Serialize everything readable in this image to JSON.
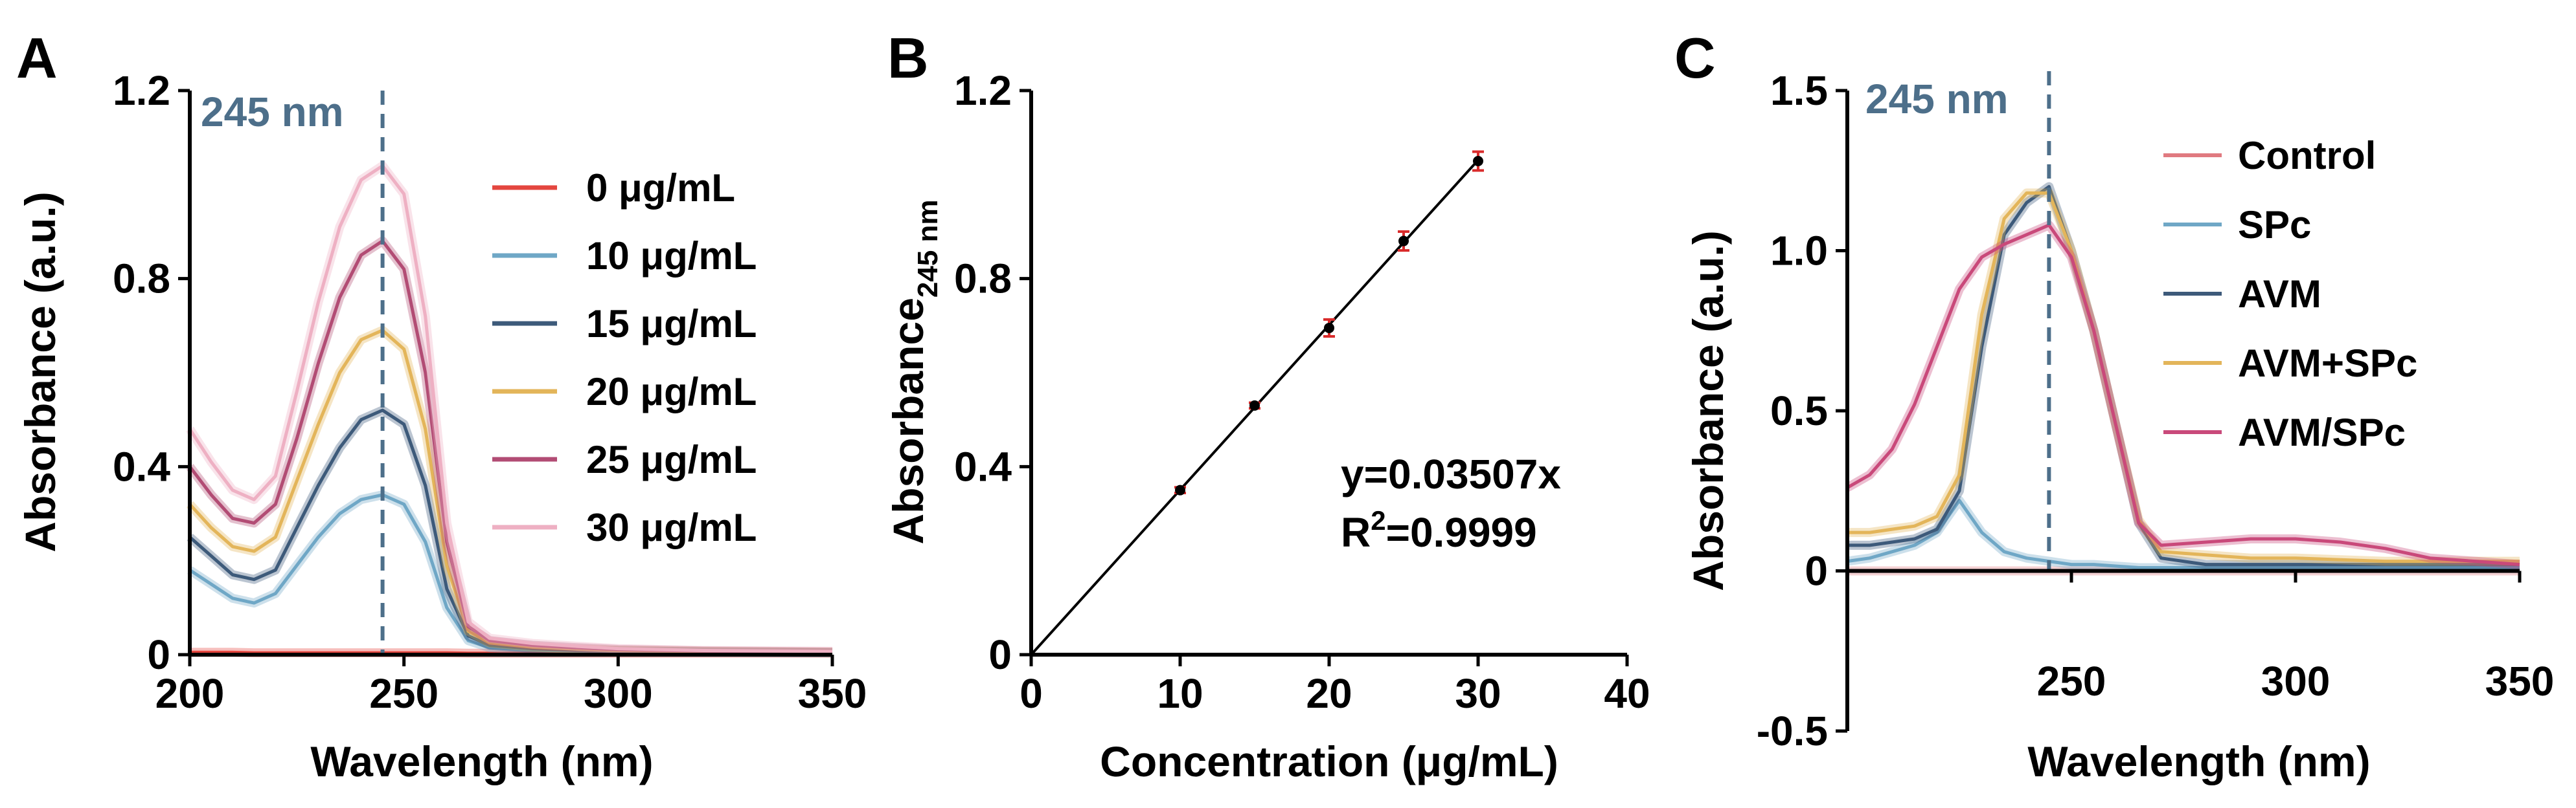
{
  "chart_data": [
    {
      "panel": "A",
      "type": "line",
      "xlabel": "Wavelength (nm)",
      "ylabel": "Absorbance (a.u.)",
      "xlim": [
        200,
        350
      ],
      "ylim": [
        0,
        1.2
      ],
      "xticks": [
        "200",
        "250",
        "300",
        "350"
      ],
      "yticks": [
        "0",
        "0.4",
        "0.8",
        "1.2"
      ],
      "annotation": "245 nm",
      "annotation_x": 245,
      "legend_position": "right",
      "x": [
        200,
        205,
        210,
        215,
        220,
        225,
        230,
        235,
        240,
        245,
        250,
        255,
        260,
        265,
        270,
        280,
        290,
        300,
        320,
        350
      ],
      "series": [
        {
          "name": "0 μg/mL",
          "color": "#e4463f",
          "values": [
            0.005,
            0.005,
            0.005,
            0.004,
            0.004,
            0.004,
            0.004,
            0.004,
            0.004,
            0.004,
            0.004,
            0.004,
            0.004,
            0.003,
            0.003,
            0.003,
            0.003,
            0.003,
            0.003,
            0.003
          ]
        },
        {
          "name": "10 μg/mL",
          "color": "#6fa7c6",
          "values": [
            0.18,
            0.15,
            0.12,
            0.11,
            0.13,
            0.19,
            0.25,
            0.3,
            0.33,
            0.34,
            0.32,
            0.24,
            0.1,
            0.03,
            0.015,
            0.01,
            0.008,
            0.006,
            0.005,
            0.004
          ]
        },
        {
          "name": "15 μg/mL",
          "color": "#3d5a7a",
          "values": [
            0.25,
            0.21,
            0.17,
            0.16,
            0.18,
            0.27,
            0.36,
            0.44,
            0.5,
            0.52,
            0.49,
            0.36,
            0.14,
            0.04,
            0.02,
            0.013,
            0.01,
            0.008,
            0.006,
            0.004
          ]
        },
        {
          "name": "20 μg/mL",
          "color": "#e3b55a",
          "values": [
            0.32,
            0.27,
            0.23,
            0.22,
            0.25,
            0.37,
            0.49,
            0.6,
            0.67,
            0.69,
            0.65,
            0.48,
            0.19,
            0.05,
            0.025,
            0.016,
            0.012,
            0.009,
            0.007,
            0.005
          ]
        },
        {
          "name": "25 μg/mL",
          "color": "#b24c74",
          "values": [
            0.4,
            0.34,
            0.29,
            0.28,
            0.32,
            0.46,
            0.62,
            0.76,
            0.85,
            0.88,
            0.82,
            0.6,
            0.24,
            0.06,
            0.03,
            0.02,
            0.015,
            0.011,
            0.008,
            0.006
          ]
        },
        {
          "name": "30 μg/mL",
          "color": "#eeb0c3",
          "values": [
            0.48,
            0.41,
            0.35,
            0.33,
            0.38,
            0.56,
            0.75,
            0.91,
            1.01,
            1.04,
            0.98,
            0.72,
            0.28,
            0.07,
            0.035,
            0.024,
            0.018,
            0.013,
            0.009,
            0.007
          ]
        }
      ]
    },
    {
      "panel": "B",
      "type": "scatter",
      "xlabel": "Concentration (μg/mL)",
      "ylabel_main": "Absorbance",
      "ylabel_sub": "245 nm",
      "xlim": [
        0,
        40
      ],
      "ylim": [
        0,
        1.2
      ],
      "xticks": [
        "0",
        "10",
        "20",
        "30",
        "40"
      ],
      "yticks": [
        "0",
        "0.4",
        "0.8",
        "1.2"
      ],
      "x": [
        10,
        15,
        20,
        25,
        30
      ],
      "y": [
        0.35,
        0.53,
        0.695,
        0.88,
        1.05
      ],
      "errors": [
        0.006,
        0.006,
        0.018,
        0.02,
        0.02
      ],
      "fit": {
        "slope": 0.03507,
        "x_range": [
          0,
          30.1
        ]
      },
      "equation": "y=0.03507x",
      "r2_prefix": "R",
      "r2_sup": "2",
      "r2_value": "=0.9999"
    },
    {
      "panel": "C",
      "type": "line",
      "xlabel": "Wavelength (nm)",
      "ylabel": "Absorbance (a.u.)",
      "xlim": [
        200,
        350
      ],
      "ylim": [
        -0.5,
        1.5
      ],
      "xticks": [
        "250",
        "300",
        "350"
      ],
      "yticks": [
        "-0.5",
        "0",
        "0.5",
        "1.0",
        "1.5"
      ],
      "annotation": "245 nm",
      "annotation_x": 245,
      "legend_position": "right",
      "x": [
        200,
        205,
        210,
        215,
        220,
        225,
        230,
        235,
        240,
        245,
        250,
        255,
        260,
        265,
        270,
        280,
        290,
        300,
        310,
        320,
        330,
        340,
        350
      ],
      "series": [
        {
          "name": "Control",
          "color": "#e07a80",
          "values": [
            0,
            0,
            0,
            0,
            0,
            0,
            0,
            0,
            0,
            0,
            0,
            0,
            0,
            0,
            0,
            0,
            0,
            0,
            0,
            0,
            0,
            0,
            0
          ]
        },
        {
          "name": "SPc",
          "color": "#6fa7c6",
          "values": [
            0.03,
            0.04,
            0.06,
            0.08,
            0.12,
            0.22,
            0.12,
            0.06,
            0.04,
            0.03,
            0.02,
            0.02,
            0.015,
            0.01,
            0.01,
            0.01,
            0.01,
            0.01,
            0.01,
            0.01,
            0.01,
            0.01,
            0.01
          ]
        },
        {
          "name": "AVM",
          "color": "#3d5a7a",
          "values": [
            0.08,
            0.08,
            0.09,
            0.1,
            0.13,
            0.25,
            0.7,
            1.05,
            1.15,
            1.2,
            1.0,
            0.75,
            0.45,
            0.15,
            0.04,
            0.02,
            0.02,
            0.02,
            0.02,
            0.02,
            0.02,
            0.02,
            0.02
          ]
        },
        {
          "name": "AVM+SPc",
          "color": "#e3b55a",
          "values": [
            0.12,
            0.12,
            0.13,
            0.14,
            0.17,
            0.3,
            0.8,
            1.1,
            1.18,
            1.18,
            1.0,
            0.75,
            0.45,
            0.16,
            0.06,
            0.05,
            0.04,
            0.04,
            0.035,
            0.03,
            0.03,
            0.03,
            0.03
          ]
        },
        {
          "name": "AVM/SPc",
          "color": "#c9497a",
          "values": [
            0.26,
            0.3,
            0.38,
            0.52,
            0.7,
            0.88,
            0.98,
            1.02,
            1.05,
            1.08,
            0.98,
            0.75,
            0.45,
            0.15,
            0.08,
            0.09,
            0.1,
            0.1,
            0.09,
            0.07,
            0.04,
            0.03,
            0.02
          ]
        }
      ]
    }
  ]
}
